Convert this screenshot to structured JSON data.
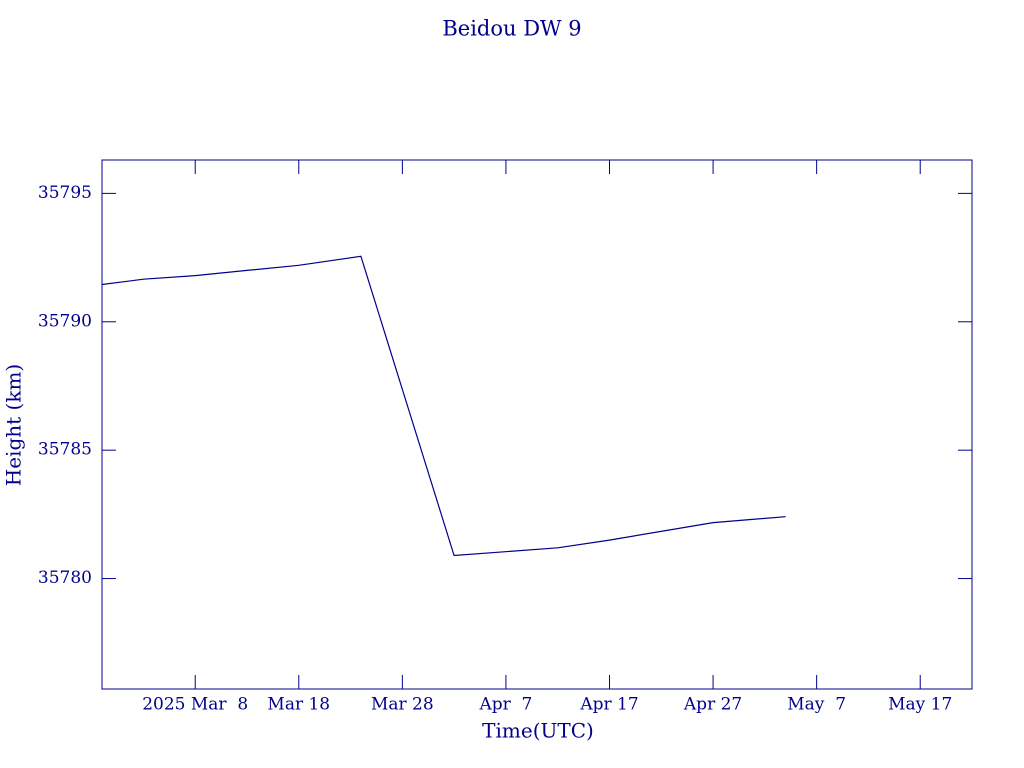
{
  "chart_data": {
    "type": "line",
    "title": "Beidou DW 9",
    "xlabel": "Time(UTC)",
    "ylabel": "Height (km)",
    "color": "#00008b",
    "x": [
      "2025-02-27",
      "2025-03-03",
      "2025-03-08",
      "2025-03-13",
      "2025-03-18",
      "2025-03-24",
      "2025-04-02",
      "2025-04-12",
      "2025-04-17",
      "2025-04-27",
      "2025-05-04"
    ],
    "values": [
      35791.45,
      35791.66,
      35791.8,
      35792.0,
      35792.2,
      35792.55,
      35780.9,
      35781.2,
      35781.5,
      35782.18,
      35782.41
    ],
    "xlim": [
      "2025-02-27",
      "2025-05-22"
    ],
    "xticks": [
      {
        "value": "2025-03-08",
        "label": "2025 Mar  8"
      },
      {
        "value": "2025-03-18",
        "label": "Mar 18"
      },
      {
        "value": "2025-03-28",
        "label": "Mar 28"
      },
      {
        "value": "2025-04-07",
        "label": "Apr  7"
      },
      {
        "value": "2025-04-17",
        "label": "Apr 17"
      },
      {
        "value": "2025-04-27",
        "label": "Apr 27"
      },
      {
        "value": "2025-05-07",
        "label": "May  7"
      },
      {
        "value": "2025-05-17",
        "label": "May 17"
      }
    ],
    "ylim": [
      35775.7,
      35796.3
    ],
    "yticks": [
      35780,
      35785,
      35790,
      35795
    ]
  }
}
